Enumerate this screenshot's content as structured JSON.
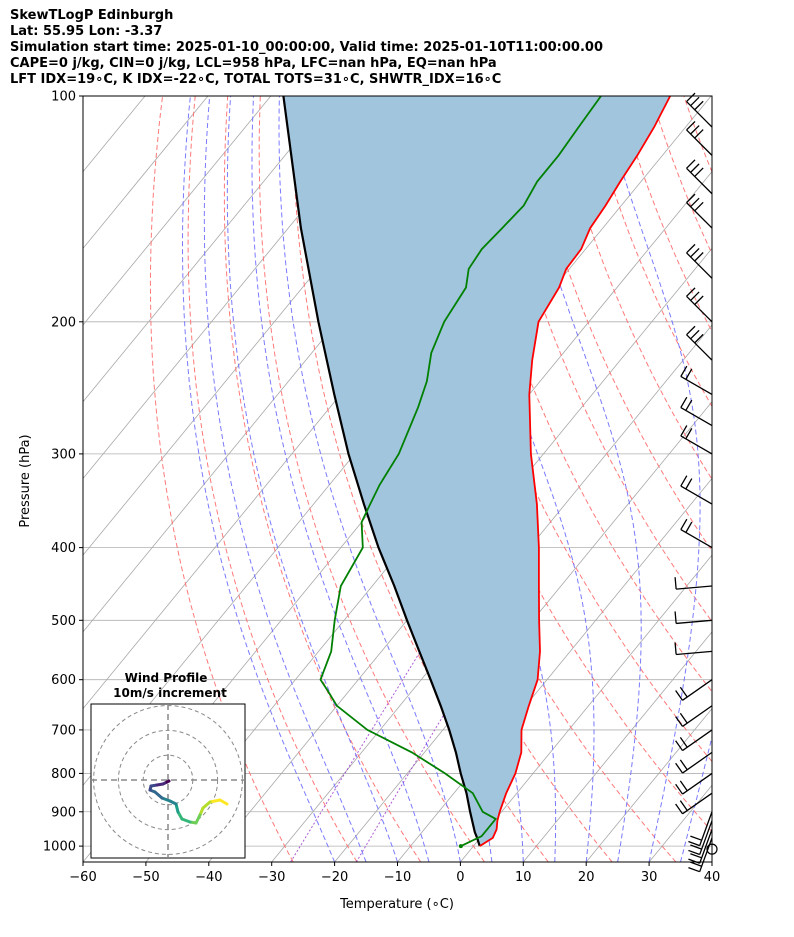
{
  "title_lines": [
    "SkewTLogP Edinburgh",
    "Lat: 55.95   Lon: -3.37",
    "Simulation start time: 2025-01-10_00:00:00, Valid time: 2025-01-10T11:00:00.00",
    "CAPE=0 j/kg, CIN=0 j/kg, LCL=958 hPa, LFC=nan hPa, EQ=nan hPa",
    "LFT IDX=19∘C, K IDX=-22∘C, TOTAL TOTS=31∘C, SHWTR_IDX=16∘C"
  ],
  "chart_data": {
    "type": "line",
    "subtype": "skew-t log-p",
    "xlabel": "Temperature (∘C)",
    "ylabel": "Pressure (hPa)",
    "xlim": [
      -60,
      40
    ],
    "ylim": [
      1050,
      100
    ],
    "y_scale": "log",
    "x_ticks": [
      "−60",
      "−50",
      "−40",
      "−30",
      "−20",
      "−10",
      "0",
      "10",
      "20",
      "30",
      "40"
    ],
    "x_tick_values": [
      -60,
      -50,
      -40,
      -30,
      -20,
      -10,
      0,
      10,
      20,
      30,
      40
    ],
    "y_ticks": [
      "100",
      "200",
      "300",
      "400",
      "500",
      "600",
      "700",
      "800",
      "900",
      "1000"
    ],
    "y_tick_values": [
      100,
      200,
      300,
      400,
      500,
      600,
      700,
      800,
      900,
      1000
    ],
    "grid": true,
    "colors": {
      "temperature": "#ff0000",
      "dewpoint": "#008000",
      "parcel": "#000000",
      "shading": "#a2c5de",
      "dry_adiabat": "#ff6a6a",
      "moist_adiabat": "#6b6bff",
      "mixing_ratio": "#9932cc"
    },
    "series": [
      {
        "name": "temperature",
        "points": [
          [
            1000,
            1.0
          ],
          [
            975,
            2.0
          ],
          [
            950,
            1.5
          ],
          [
            925,
            0.5
          ],
          [
            900,
            -0.3
          ],
          [
            850,
            -1.7
          ],
          [
            800,
            -2.8
          ],
          [
            750,
            -4.6
          ],
          [
            700,
            -7.5
          ],
          [
            650,
            -9.5
          ],
          [
            600,
            -11.5
          ],
          [
            550,
            -14.8
          ],
          [
            500,
            -19
          ],
          [
            450,
            -23.5
          ],
          [
            400,
            -28.5
          ],
          [
            350,
            -34.5
          ],
          [
            300,
            -42
          ],
          [
            250,
            -50
          ],
          [
            225,
            -54
          ],
          [
            200,
            -58
          ],
          [
            180,
            -59.2
          ],
          [
            170,
            -60.5
          ],
          [
            160,
            -60.7
          ],
          [
            150,
            -62
          ],
          [
            140,
            -62.5
          ],
          [
            130,
            -63.3
          ],
          [
            120,
            -64
          ],
          [
            110,
            -65
          ],
          [
            100,
            -66.5
          ]
        ]
      },
      {
        "name": "dewpoint",
        "points": [
          [
            1000,
            -2
          ],
          [
            970,
            0
          ],
          [
            940,
            0
          ],
          [
            920,
            0
          ],
          [
            900,
            -3
          ],
          [
            850,
            -7
          ],
          [
            800,
            -14
          ],
          [
            750,
            -22
          ],
          [
            700,
            -32
          ],
          [
            650,
            -40
          ],
          [
            620,
            -43.5
          ],
          [
            600,
            -46
          ],
          [
            550,
            -48
          ],
          [
            500,
            -51.5
          ],
          [
            450,
            -55
          ],
          [
            400,
            -56.5
          ],
          [
            370,
            -60
          ],
          [
            350,
            -61
          ],
          [
            330,
            -62
          ],
          [
            300,
            -63
          ],
          [
            260,
            -66
          ],
          [
            240,
            -68
          ],
          [
            220,
            -71
          ],
          [
            200,
            -73
          ],
          [
            180,
            -74
          ],
          [
            170,
            -76
          ],
          [
            160,
            -76.5
          ],
          [
            150,
            -76
          ],
          [
            140,
            -75.5
          ],
          [
            130,
            -76.5
          ],
          [
            120,
            -76.5
          ],
          [
            110,
            -77
          ],
          [
            100,
            -77.5
          ]
        ]
      },
      {
        "name": "parcel",
        "points": [
          [
            1000,
            1.0
          ],
          [
            975,
            -0.5
          ],
          [
            958,
            -1.6
          ],
          [
            900,
            -5
          ],
          [
            850,
            -8
          ],
          [
            800,
            -11.5
          ],
          [
            750,
            -15
          ],
          [
            700,
            -19
          ],
          [
            650,
            -23.5
          ],
          [
            600,
            -28.5
          ],
          [
            550,
            -34
          ],
          [
            500,
            -40
          ],
          [
            450,
            -46.5
          ],
          [
            400,
            -54
          ],
          [
            350,
            -62
          ],
          [
            300,
            -71
          ],
          [
            250,
            -81
          ],
          [
            200,
            -93
          ],
          [
            150,
            -108
          ],
          [
            100,
            -128
          ]
        ]
      }
    ],
    "wind_barbs_pressure": [
      1000,
      975,
      950,
      925,
      900,
      850,
      800,
      750,
      700,
      650,
      600,
      550,
      500,
      450,
      400,
      350,
      300,
      275,
      250,
      225,
      200,
      175,
      150,
      135,
      120,
      110
    ],
    "hodograph": {
      "title_lines": [
        "Wind Profile",
        "10m/s increment"
      ],
      "rings_ms": [
        10,
        20,
        30
      ],
      "colormap": "viridis"
    }
  }
}
